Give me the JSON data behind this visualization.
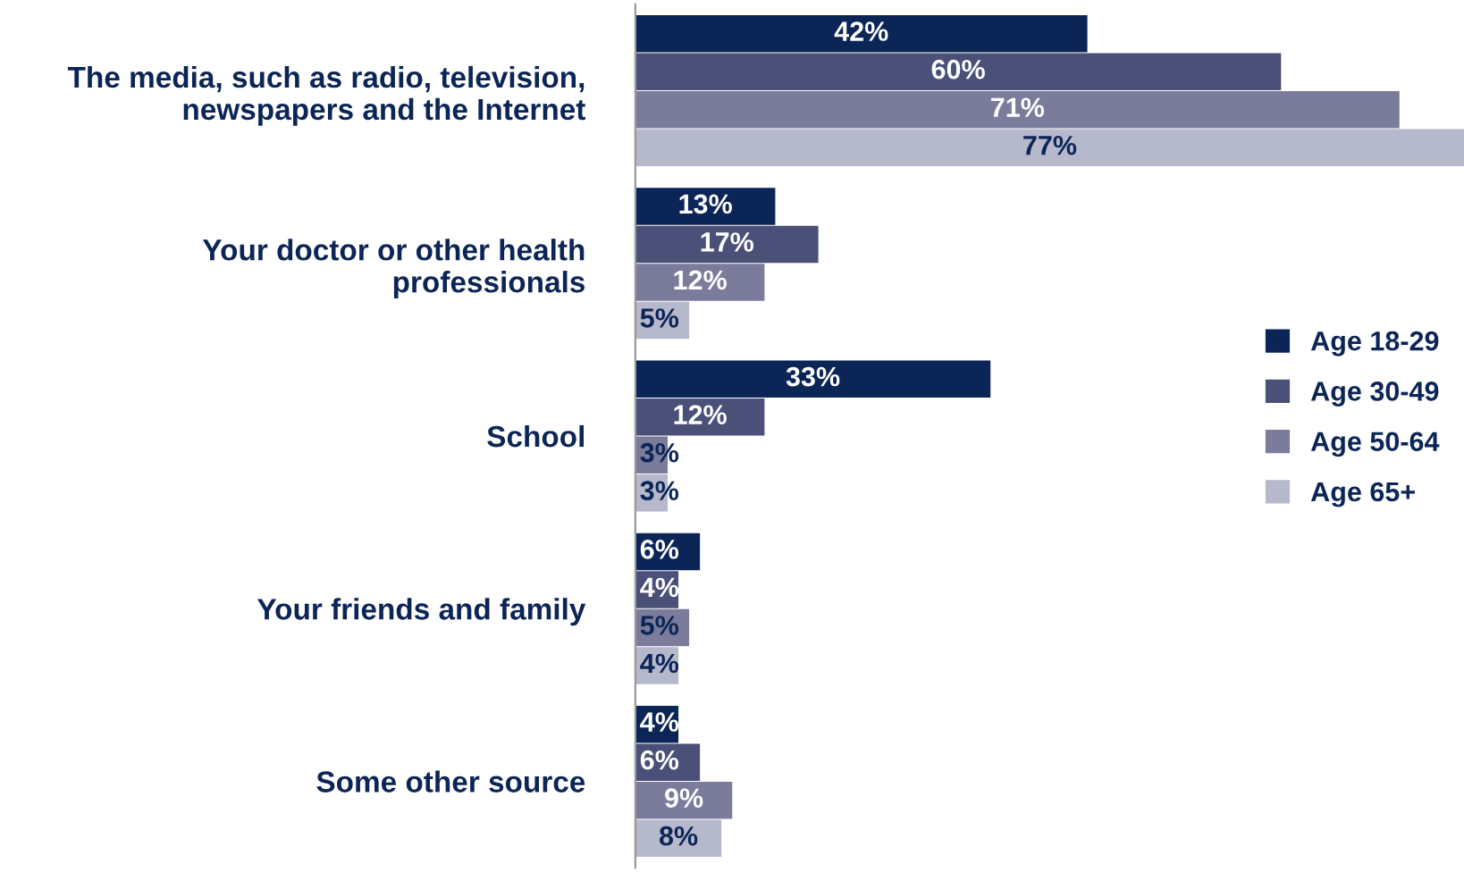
{
  "chart_data": {
    "type": "bar",
    "orientation": "horizontal",
    "legend": "right",
    "grid": false,
    "categories": [
      "The media, such as radio, television, newspapers and the Internet",
      "Your doctor or other health professionals",
      "School",
      "Your friends and family",
      "Some other source"
    ],
    "series": [
      {
        "name": "Age 18-29",
        "color": "#0c2557",
        "values": [
          42,
          13,
          33,
          6,
          4
        ],
        "value_labels": [
          "42%",
          "13%",
          "33%",
          "6%",
          "4%"
        ]
      },
      {
        "name": "Age 30-49",
        "color": "#4a5078",
        "values": [
          60,
          17,
          12,
          4,
          6
        ],
        "value_labels": [
          "60%",
          "17%",
          "12%",
          "4%",
          "6%"
        ]
      },
      {
        "name": "Age 50-64",
        "color": "#7b7c9c",
        "values": [
          71,
          12,
          3,
          5,
          9
        ],
        "value_labels": [
          "71%",
          "12%",
          "3%",
          "5%",
          "9%"
        ]
      },
      {
        "name": "Age 65+",
        "color": "#b6b8cc",
        "values": [
          77,
          5,
          3,
          4,
          8
        ],
        "value_labels": [
          "77%",
          "5%",
          "3%",
          "4%",
          "8%"
        ]
      }
    ]
  }
}
